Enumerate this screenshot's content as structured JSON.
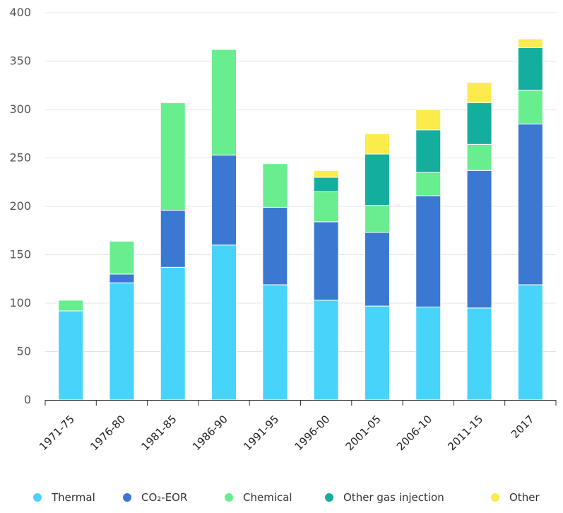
{
  "chart_data": {
    "type": "bar",
    "stacked": true,
    "title": "",
    "xlabel": "",
    "ylabel": "",
    "ylim": [
      0,
      400
    ],
    "yticks": [
      0,
      50,
      100,
      150,
      200,
      250,
      300,
      350,
      400
    ],
    "grid": true,
    "legend_position": "bottom",
    "categories": [
      "1971-75",
      "1976-80",
      "1981-85",
      "1986-90",
      "1991-95",
      "1996-00",
      "2001-05",
      "2006-10",
      "2011-15",
      "2017"
    ],
    "series": [
      {
        "name": "Thermal",
        "color": "#48d3fb",
        "values": [
          92,
          121,
          137,
          160,
          119,
          103,
          97,
          96,
          95,
          119
        ]
      },
      {
        "name": "CO₂-EOR",
        "color": "#3b78d1",
        "values": [
          0,
          9,
          59,
          93,
          80,
          81,
          76,
          115,
          142,
          166
        ]
      },
      {
        "name": "Chemical",
        "color": "#68ee8e",
        "values": [
          11,
          34,
          111,
          109,
          45,
          31,
          28,
          24,
          27,
          35
        ]
      },
      {
        "name": "Other gas injection",
        "color": "#14ae9f",
        "values": [
          0,
          0,
          0,
          0,
          0,
          15,
          53,
          44,
          43,
          44
        ]
      },
      {
        "name": "Other",
        "color": "#fbeb4b",
        "values": [
          0,
          0,
          0,
          0,
          0,
          7,
          21,
          21,
          21,
          9
        ]
      }
    ]
  }
}
